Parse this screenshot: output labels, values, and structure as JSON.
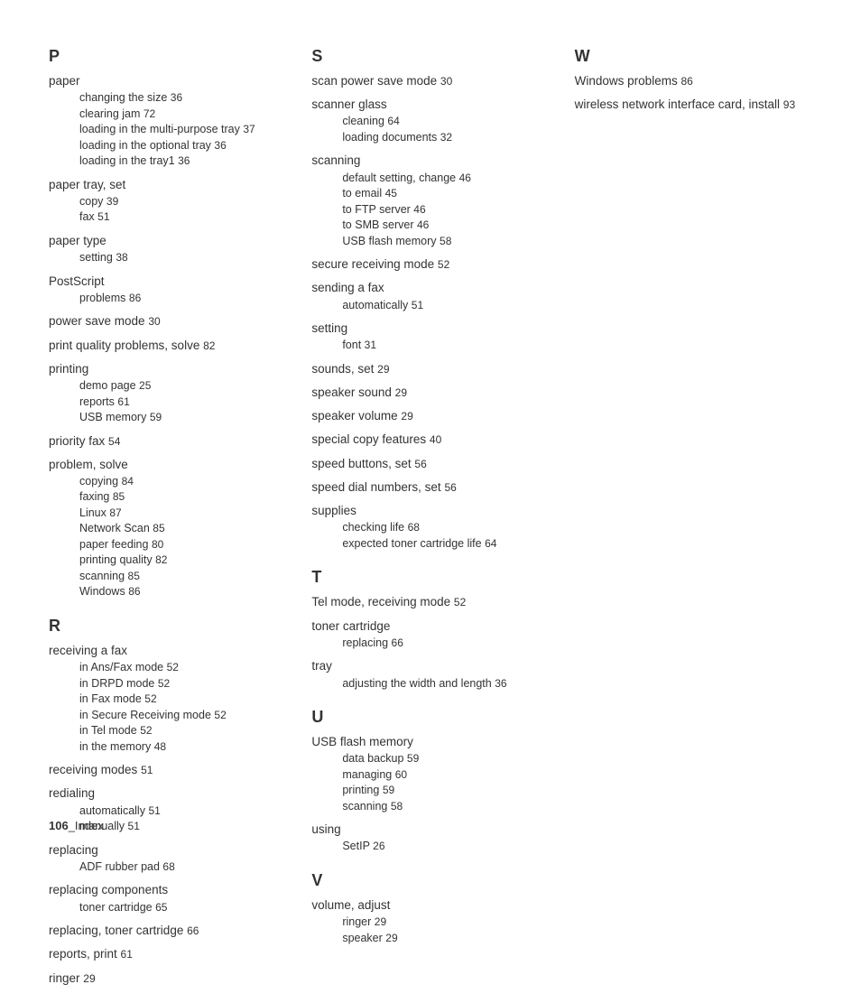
{
  "page": {
    "footer_number": "106",
    "footer_label": "_Index",
    "text_color": "#333333",
    "background_color": "#ffffff",
    "letter_fontsize": 18,
    "main_fontsize": 13.5,
    "sub_fontsize": 12.5
  },
  "columns": [
    {
      "sections": [
        {
          "letter": "P",
          "entries": [
            {
              "term": "paper",
              "subs": [
                {
                  "t": "changing the size",
                  "p": "36"
                },
                {
                  "t": "clearing jam",
                  "p": "72"
                },
                {
                  "t": "loading in the multi-purpose tray",
                  "p": "37"
                },
                {
                  "t": "loading in the optional tray",
                  "p": "36"
                },
                {
                  "t": "loading in the tray1",
                  "p": "36"
                }
              ]
            },
            {
              "term": "paper tray, set",
              "subs": [
                {
                  "t": "copy",
                  "p": "39"
                },
                {
                  "t": "fax",
                  "p": "51"
                }
              ]
            },
            {
              "term": "paper type",
              "subs": [
                {
                  "t": "setting",
                  "p": "38"
                }
              ]
            },
            {
              "term": "PostScript",
              "subs": [
                {
                  "t": "problems",
                  "p": "86"
                }
              ]
            },
            {
              "term": "power save mode",
              "page": "30"
            },
            {
              "term": "print quality problems, solve",
              "page": "82"
            },
            {
              "term": "printing",
              "subs": [
                {
                  "t": "demo page",
                  "p": "25"
                },
                {
                  "t": "reports",
                  "p": "61"
                },
                {
                  "t": "USB memory",
                  "p": "59"
                }
              ]
            },
            {
              "term": "priority fax",
              "page": "54"
            },
            {
              "term": "problem, solve",
              "subs": [
                {
                  "t": "copying",
                  "p": "84"
                },
                {
                  "t": "faxing",
                  "p": "85"
                },
                {
                  "t": "Linux",
                  "p": "87"
                },
                {
                  "t": "Network Scan",
                  "p": "85"
                },
                {
                  "t": "paper feeding",
                  "p": "80"
                },
                {
                  "t": "printing quality",
                  "p": "82"
                },
                {
                  "t": "scanning",
                  "p": "85"
                },
                {
                  "t": "Windows",
                  "p": "86"
                }
              ]
            }
          ]
        },
        {
          "letter": "R",
          "entries": [
            {
              "term": "receiving a fax",
              "subs": [
                {
                  "t": "in Ans/Fax mode",
                  "p": "52"
                },
                {
                  "t": "in DRPD mode",
                  "p": "52"
                },
                {
                  "t": "in Fax mode",
                  "p": "52"
                },
                {
                  "t": "in Secure Receiving mode",
                  "p": "52"
                },
                {
                  "t": "in Tel mode",
                  "p": "52"
                },
                {
                  "t": "in the memory",
                  "p": "48"
                }
              ]
            },
            {
              "term": "receiving modes",
              "page": "51"
            },
            {
              "term": "redialing",
              "subs": [
                {
                  "t": "automatically",
                  "p": "51"
                },
                {
                  "t": "manually",
                  "p": "51"
                }
              ]
            },
            {
              "term": "replacing",
              "subs": [
                {
                  "t": "ADF rubber pad",
                  "p": "68"
                }
              ]
            },
            {
              "term": "replacing components",
              "subs": [
                {
                  "t": "toner cartridge",
                  "p": "65"
                }
              ]
            },
            {
              "term": "replacing, toner cartridge",
              "page": "66"
            },
            {
              "term": "reports, print",
              "page": "61"
            },
            {
              "term": "ringer",
              "page": "29"
            }
          ]
        }
      ]
    },
    {
      "sections": [
        {
          "letter": "S",
          "entries": [
            {
              "term": "scan power save mode",
              "page": "30"
            },
            {
              "term": "scanner glass",
              "subs": [
                {
                  "t": "cleaning",
                  "p": "64"
                },
                {
                  "t": "loading documents",
                  "p": "32"
                }
              ]
            },
            {
              "term": "scanning",
              "subs": [
                {
                  "t": "default setting, change",
                  "p": "46"
                },
                {
                  "t": "to email",
                  "p": "45"
                },
                {
                  "t": "to FTP server",
                  "p": "46"
                },
                {
                  "t": "to SMB server",
                  "p": "46"
                },
                {
                  "t": "USB flash memory",
                  "p": "58"
                }
              ]
            },
            {
              "term": "secure receiving mode",
              "page": "52"
            },
            {
              "term": "sending a fax",
              "subs": [
                {
                  "t": "automatically",
                  "p": "51"
                }
              ]
            },
            {
              "term": "setting",
              "subs": [
                {
                  "t": "font",
                  "p": "31"
                }
              ]
            },
            {
              "term": "sounds, set",
              "page": "29"
            },
            {
              "term": "speaker sound",
              "page": "29"
            },
            {
              "term": "speaker volume",
              "page": "29"
            },
            {
              "term": "special copy features",
              "page": "40"
            },
            {
              "term": "speed buttons, set",
              "page": "56"
            },
            {
              "term": "speed dial numbers, set",
              "page": "56"
            },
            {
              "term": "supplies",
              "subs": [
                {
                  "t": "checking life",
                  "p": "68"
                },
                {
                  "t": "expected toner cartridge life",
                  "p": "64"
                }
              ]
            }
          ]
        },
        {
          "letter": "T",
          "entries": [
            {
              "term": "Tel mode, receiving mode",
              "page": "52"
            },
            {
              "term": "toner cartridge",
              "subs": [
                {
                  "t": "replacing",
                  "p": "66"
                }
              ]
            },
            {
              "term": "tray",
              "subs": [
                {
                  "t": "adjusting the width and length",
                  "p": "36"
                }
              ]
            }
          ]
        },
        {
          "letter": "U",
          "entries": [
            {
              "term": "USB flash memory",
              "subs": [
                {
                  "t": "data backup",
                  "p": "59"
                },
                {
                  "t": "managing",
                  "p": "60"
                },
                {
                  "t": "printing",
                  "p": "59"
                },
                {
                  "t": "scanning",
                  "p": "58"
                }
              ]
            },
            {
              "term": "using",
              "subs": [
                {
                  "t": "SetIP",
                  "p": "26"
                }
              ]
            }
          ]
        },
        {
          "letter": "V",
          "entries": [
            {
              "term": "volume, adjust",
              "subs": [
                {
                  "t": "ringer",
                  "p": "29"
                },
                {
                  "t": "speaker",
                  "p": "29"
                }
              ]
            }
          ]
        }
      ]
    },
    {
      "sections": [
        {
          "letter": "W",
          "entries": [
            {
              "term": "Windows problems",
              "page": "86"
            },
            {
              "term": "wireless network interface card, install",
              "page": "93"
            }
          ]
        }
      ]
    }
  ]
}
